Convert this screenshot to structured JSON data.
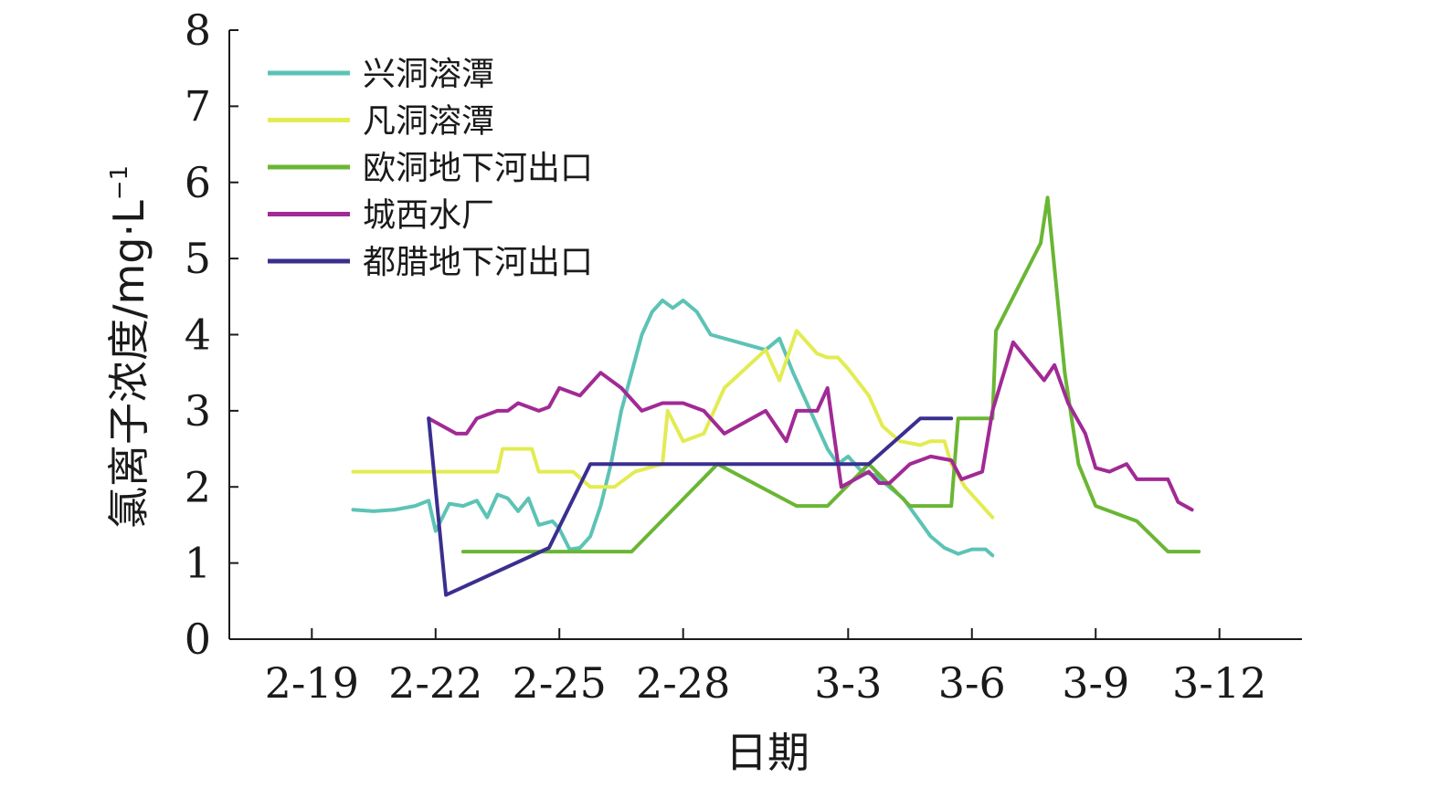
{
  "chart_data": {
    "type": "line",
    "xlabel": "日期",
    "ylabel": "氯离子浓度/mg·L",
    "ylabel_sup": "−1",
    "ylim": [
      0,
      8
    ],
    "xlim": [
      "2-17",
      "3-14"
    ],
    "grid": false,
    "legend_position": "top-left",
    "y_ticks": [
      "0",
      "1",
      "2",
      "3",
      "4",
      "5",
      "6",
      "7",
      "8"
    ],
    "x_ticks": [
      "2-19",
      "2-22",
      "2-25",
      "2-28",
      "3-3",
      "3-6",
      "3-9",
      "3-12"
    ],
    "series": [
      {
        "name": "兴洞溶潭",
        "color": "#5cc3b5",
        "points": [
          [
            "2-20",
            1.7
          ],
          [
            "2-20 12:00",
            1.68
          ],
          [
            "2-21",
            1.7
          ],
          [
            "2-21 12:00",
            1.75
          ],
          [
            "2-21 20:00",
            1.82
          ],
          [
            "2-22",
            1.42
          ],
          [
            "2-22 08:00",
            1.78
          ],
          [
            "2-22 16:00",
            1.75
          ],
          [
            "2-23",
            1.82
          ],
          [
            "2-23 06:00",
            1.6
          ],
          [
            "2-23 12:00",
            1.9
          ],
          [
            "2-23 18:00",
            1.85
          ],
          [
            "2-24",
            1.68
          ],
          [
            "2-24 06:00",
            1.85
          ],
          [
            "2-24 12:00",
            1.5
          ],
          [
            "2-24 20:00",
            1.55
          ],
          [
            "2-25",
            1.45
          ],
          [
            "2-25 06:00",
            1.18
          ],
          [
            "2-25 12:00",
            1.2
          ],
          [
            "2-25 18:00",
            1.35
          ],
          [
            "2-26",
            1.75
          ],
          [
            "2-26 06:00",
            2.3
          ],
          [
            "2-26 12:00",
            3.0
          ],
          [
            "2-26 18:00",
            3.5
          ],
          [
            "2-27",
            4.0
          ],
          [
            "2-27 06:00",
            4.3
          ],
          [
            "2-27 12:00",
            4.45
          ],
          [
            "2-27 18:00",
            4.35
          ],
          [
            "2-28",
            4.45
          ],
          [
            "2-28 08:00",
            4.3
          ],
          [
            "2-28 16:00",
            4.0
          ],
          [
            "3-1",
            3.8
          ],
          [
            "3-1 08:00",
            3.95
          ],
          [
            "3-1 16:00",
            3.5
          ],
          [
            "3-2",
            3.1
          ],
          [
            "3-2 06:00",
            2.8
          ],
          [
            "3-2 12:00",
            2.5
          ],
          [
            "3-2 18:00",
            2.3
          ],
          [
            "3-3",
            2.4
          ],
          [
            "3-3 08:00",
            2.2
          ],
          [
            "3-3 16:00",
            2.15
          ],
          [
            "3-4",
            2.0
          ],
          [
            "3-4 08:00",
            1.85
          ],
          [
            "3-4 16:00",
            1.6
          ],
          [
            "3-5",
            1.35
          ],
          [
            "3-5 08:00",
            1.2
          ],
          [
            "3-5 16:00",
            1.12
          ],
          [
            "3-6",
            1.18
          ],
          [
            "3-6 08:00",
            1.18
          ],
          [
            "3-6 12:00",
            1.1
          ]
        ]
      },
      {
        "name": "凡洞溶潭",
        "color": "#e2ec52",
        "points": [
          [
            "2-20",
            2.2
          ],
          [
            "2-21 12:00",
            2.2
          ],
          [
            "2-23 12:00",
            2.2
          ],
          [
            "2-23 15:00",
            2.5
          ],
          [
            "2-24 08:00",
            2.5
          ],
          [
            "2-24 12:00",
            2.2
          ],
          [
            "2-25 08:00",
            2.2
          ],
          [
            "2-25 18:00",
            2.0
          ],
          [
            "2-26 08:00",
            2.0
          ],
          [
            "2-26 20:00",
            2.2
          ],
          [
            "2-27 12:00",
            2.3
          ],
          [
            "2-27 15:00",
            3.0
          ],
          [
            "2-28",
            2.6
          ],
          [
            "2-28 12:00",
            2.7
          ],
          [
            "2-29",
            3.3
          ],
          [
            "3-1",
            3.8
          ],
          [
            "3-1 08:00",
            3.4
          ],
          [
            "3-1 18:00",
            4.05
          ],
          [
            "3-2 06:00",
            3.75
          ],
          [
            "3-2 12:00",
            3.7
          ],
          [
            "3-2 18:00",
            3.7
          ],
          [
            "3-3",
            3.55
          ],
          [
            "3-3 12:00",
            3.2
          ],
          [
            "3-3 20:00",
            2.8
          ],
          [
            "3-4 06:00",
            2.6
          ],
          [
            "3-4 18:00",
            2.55
          ],
          [
            "3-5",
            2.6
          ],
          [
            "3-5 08:00",
            2.6
          ],
          [
            "3-5 12:00",
            2.3
          ],
          [
            "3-5 20:00",
            2.0
          ],
          [
            "3-6 12:00",
            1.6
          ]
        ]
      },
      {
        "name": "欧洞地下河出口",
        "color": "#6ab634",
        "points": [
          [
            "2-22 16:00",
            1.15
          ],
          [
            "2-26 18:00",
            1.15
          ],
          [
            "2-28 20:00",
            2.3
          ],
          [
            "3-1 18:00",
            1.75
          ],
          [
            "3-2 12:00",
            1.75
          ],
          [
            "3-3 12:00",
            2.3
          ],
          [
            "3-4 12:00",
            1.75
          ],
          [
            "3-5 12:00",
            1.75
          ],
          [
            "3-5 16:00",
            2.9
          ],
          [
            "3-6 12:00",
            2.9
          ],
          [
            "3-6 14:00",
            4.05
          ],
          [
            "3-7 16:00",
            5.2
          ],
          [
            "3-7 20:00",
            5.8
          ],
          [
            "3-8 06:00",
            3.5
          ],
          [
            "3-8 14:00",
            2.3
          ],
          [
            "3-9",
            1.75
          ],
          [
            "3-10",
            1.55
          ],
          [
            "3-10 18:00",
            1.15
          ],
          [
            "3-11 12:00",
            1.15
          ]
        ]
      },
      {
        "name": "城西水厂",
        "color": "#a12a95",
        "points": [
          [
            "2-21 20:00",
            2.9
          ],
          [
            "2-22 12:00",
            2.7
          ],
          [
            "2-22 18:00",
            2.7
          ],
          [
            "2-23",
            2.9
          ],
          [
            "2-23 12:00",
            3.0
          ],
          [
            "2-23 18:00",
            3.0
          ],
          [
            "2-24",
            3.1
          ],
          [
            "2-24 12:00",
            3.0
          ],
          [
            "2-24 18:00",
            3.05
          ],
          [
            "2-25",
            3.3
          ],
          [
            "2-25 12:00",
            3.2
          ],
          [
            "2-26",
            3.5
          ],
          [
            "2-26 12:00",
            3.3
          ],
          [
            "2-27",
            3.0
          ],
          [
            "2-27 12:00",
            3.1
          ],
          [
            "2-28",
            3.1
          ],
          [
            "2-28 12:00",
            3.0
          ],
          [
            "2-29",
            2.7
          ],
          [
            "3-1",
            3.0
          ],
          [
            "3-1 12:00",
            2.6
          ],
          [
            "3-1 18:00",
            3.0
          ],
          [
            "3-2 06:00",
            3.0
          ],
          [
            "3-2 12:00",
            3.3
          ],
          [
            "3-2 20:00",
            2.0
          ],
          [
            "3-3",
            2.05
          ],
          [
            "3-3 12:00",
            2.2
          ],
          [
            "3-3 18:00",
            2.05
          ],
          [
            "3-4",
            2.05
          ],
          [
            "3-4 12:00",
            2.3
          ],
          [
            "3-5",
            2.4
          ],
          [
            "3-5 12:00",
            2.35
          ],
          [
            "3-5 18:00",
            2.1
          ],
          [
            "3-6 06:00",
            2.2
          ],
          [
            "3-6 12:00",
            3.0
          ],
          [
            "3-7",
            3.9
          ],
          [
            "3-7 18:00",
            3.4
          ],
          [
            "3-8",
            3.6
          ],
          [
            "3-8 08:00",
            3.1
          ],
          [
            "3-8 18:00",
            2.7
          ],
          [
            "3-9",
            2.25
          ],
          [
            "3-9 08:00",
            2.2
          ],
          [
            "3-9 18:00",
            2.3
          ],
          [
            "3-10",
            2.1
          ],
          [
            "3-10 18:00",
            2.1
          ],
          [
            "3-11",
            1.8
          ],
          [
            "3-11 08:00",
            1.7
          ]
        ]
      },
      {
        "name": "都腊地下河出口",
        "color": "#3a2f8f",
        "points": [
          [
            "2-21 20:00",
            2.9
          ],
          [
            "2-22 06:00",
            0.58
          ],
          [
            "2-24 18:00",
            1.2
          ],
          [
            "2-25 18:00",
            2.3
          ],
          [
            "3-3 12:00",
            2.3
          ],
          [
            "3-4 18:00",
            2.9
          ],
          [
            "3-5 12:00",
            2.9
          ]
        ]
      }
    ]
  }
}
